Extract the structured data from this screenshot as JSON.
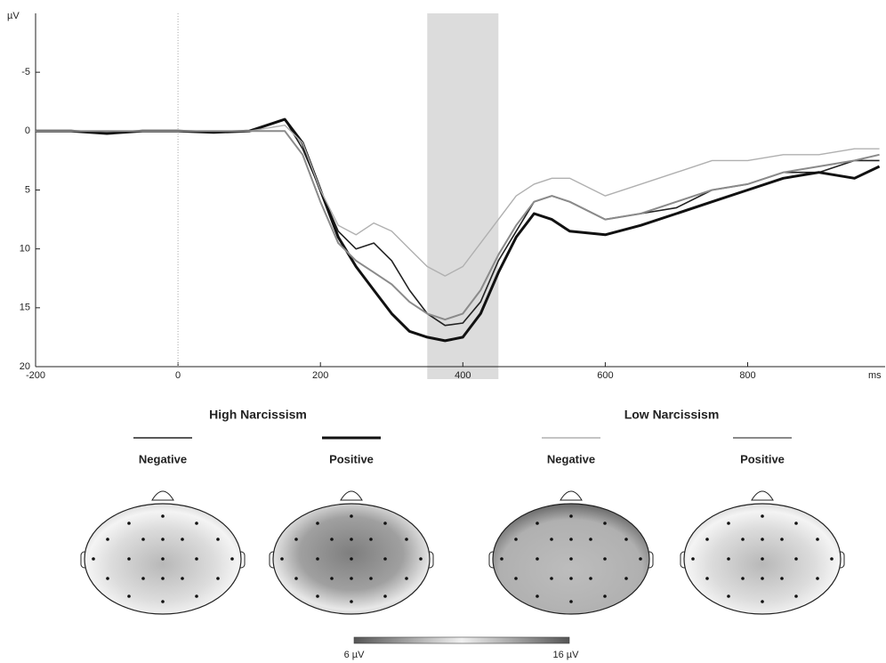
{
  "chart_data": {
    "type": "line",
    "y_label": "µV",
    "x_label": "ms",
    "x": [
      -200,
      -150,
      -100,
      -50,
      0,
      50,
      100,
      150,
      175,
      200,
      225,
      250,
      275,
      300,
      325,
      350,
      375,
      400,
      425,
      450,
      475,
      500,
      525,
      550,
      600,
      650,
      700,
      750,
      800,
      850,
      900,
      950,
      985
    ],
    "series": [
      {
        "name": "Negative",
        "color": "#222222",
        "width": 1.6,
        "values": [
          0,
          0,
          0,
          0,
          0,
          0,
          0,
          -1,
          1.5,
          5,
          8.5,
          10,
          9.5,
          11,
          13.5,
          15.5,
          16.5,
          16.3,
          14.5,
          11,
          8.5,
          6,
          5.5,
          6,
          7.5,
          7,
          6.5,
          5,
          4.5,
          3.5,
          3.5,
          2.5,
          2.5
        ]
      },
      {
        "name": "Positive",
        "color": "#111111",
        "width": 3,
        "values": [
          0,
          0,
          0.2,
          0,
          0,
          0.1,
          0,
          -1,
          1,
          5,
          9,
          11.5,
          13.5,
          15.5,
          17,
          17.5,
          17.8,
          17.5,
          15.5,
          12,
          9,
          7,
          7.5,
          8.5,
          8.8,
          8,
          7,
          6,
          5,
          4,
          3.5,
          4,
          3
        ]
      },
      {
        "name": "Negative",
        "color": "#b0b0b0",
        "width": 1.4,
        "values": [
          0,
          0,
          0,
          0,
          0,
          0,
          0,
          -0.5,
          1,
          5,
          8,
          8.8,
          7.8,
          8.5,
          10,
          11.5,
          12.3,
          11.5,
          9.5,
          7.5,
          5.5,
          4.5,
          4,
          4,
          5.5,
          4.5,
          3.5,
          2.5,
          2.5,
          2,
          2,
          1.5,
          1.5
        ]
      },
      {
        "name": "Positive",
        "color": "#8a8a8a",
        "width": 2,
        "values": [
          0,
          0,
          0,
          0,
          0,
          0,
          0,
          0,
          2,
          6,
          9.5,
          11,
          12,
          13,
          14.5,
          15.5,
          16,
          15.5,
          13.5,
          10.5,
          8,
          6,
          5.5,
          6,
          7.5,
          7,
          6,
          5,
          4.5,
          3.5,
          3,
          2.5,
          2
        ]
      }
    ],
    "legend_groups": [
      "High Narcissism",
      "Low Narcissism"
    ],
    "window": [
      350,
      450
    ],
    "xlim": [
      -200,
      993
    ],
    "xticks": [
      -200,
      0,
      200,
      400,
      600,
      800
    ],
    "ylim": [
      -10,
      20
    ],
    "yticks": [
      -5,
      0,
      5,
      10,
      15,
      20
    ],
    "y_inverted": true,
    "colorbar_labels": [
      "6 µV",
      "16 µV"
    ]
  }
}
